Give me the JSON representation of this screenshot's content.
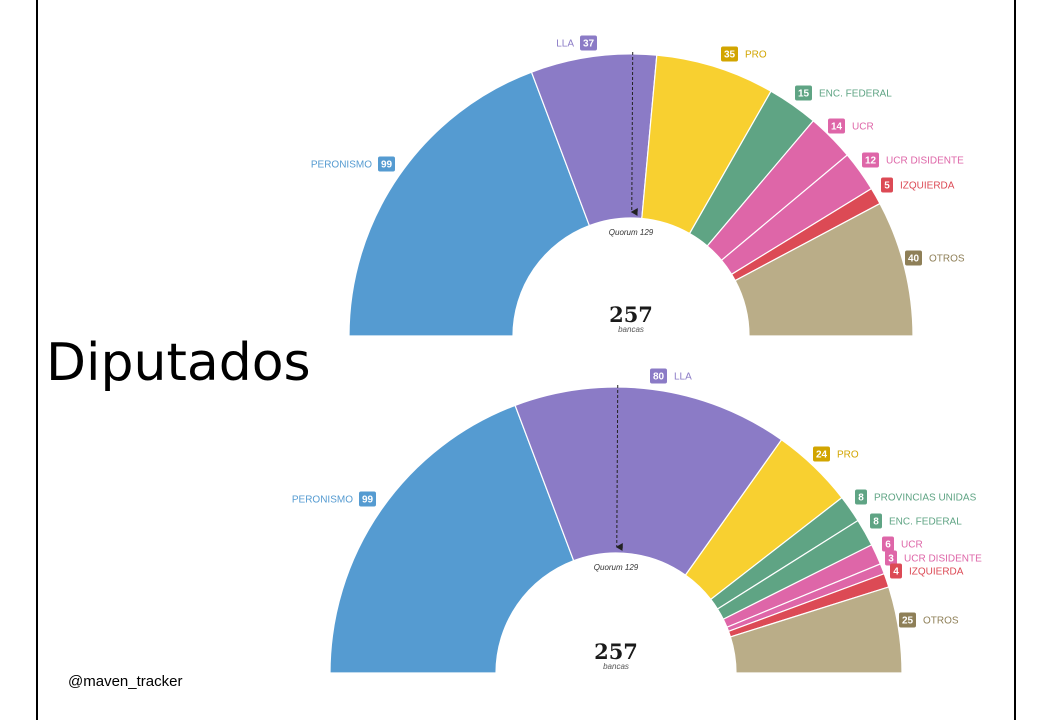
{
  "title": "Diputados",
  "handle": "@maven_tracker",
  "colors": {
    "peronismo": "#559bd1",
    "lla": "#8b7bc6",
    "pro": "#f8d030",
    "federal_green": "#5fa484",
    "ucr": "#de66a8",
    "izquierda": "#dc4a55",
    "otros": "#baad88",
    "label_pro": "#d2a500",
    "label_otros": "#8e7f57"
  },
  "chart_data": [
    {
      "type": "pie",
      "variant": "parliament-half-donut",
      "total": "257",
      "total_label": "bancas",
      "quorum_label": "Quorum 129",
      "quorum": 129,
      "series": [
        {
          "name": "PERONISMO",
          "value": 99,
          "label": "99",
          "color": "#559bd1",
          "label_color": "#559bd1",
          "label_side": "left"
        },
        {
          "name": "LLA",
          "value": 37,
          "label": "37",
          "color": "#8b7bc6",
          "label_color": "#8b7bc6",
          "label_side": "left"
        },
        {
          "name": "PRO",
          "value": 35,
          "label": "35",
          "color": "#f8d030",
          "label_color": "#d2a500",
          "label_side": "right"
        },
        {
          "name": "ENC. FEDERAL",
          "value": 15,
          "label": "15",
          "color": "#5fa484",
          "label_color": "#5fa484",
          "label_side": "right"
        },
        {
          "name": "UCR",
          "value": 14,
          "label": "14",
          "color": "#de66a8",
          "label_color": "#de66a8",
          "label_side": "right"
        },
        {
          "name": "UCR DISIDENTE",
          "value": 12,
          "label": "12",
          "color": "#de66a8",
          "label_color": "#de66a8",
          "label_side": "right"
        },
        {
          "name": "IZQUIERDA",
          "value": 5,
          "label": "5",
          "color": "#dc4a55",
          "label_color": "#dc4a55",
          "label_side": "right"
        },
        {
          "name": "OTROS",
          "value": 40,
          "label": "40",
          "color": "#baad88",
          "label_color": "#8e7f57",
          "label_side": "right"
        }
      ]
    },
    {
      "type": "pie",
      "variant": "parliament-half-donut",
      "total": "257",
      "total_label": "bancas",
      "quorum_label": "Quorum 129",
      "quorum": 129,
      "series": [
        {
          "name": "PERONISMO",
          "value": 99,
          "label": "99",
          "color": "#559bd1",
          "label_color": "#559bd1",
          "label_side": "left"
        },
        {
          "name": "LLA",
          "value": 80,
          "label": "80",
          "color": "#8b7bc6",
          "label_color": "#8b7bc6",
          "label_side": "right"
        },
        {
          "name": "PRO",
          "value": 24,
          "label": "24",
          "color": "#f8d030",
          "label_color": "#d2a500",
          "label_side": "right"
        },
        {
          "name": "PROVINCIAS UNIDAS",
          "value": 8,
          "label": "8",
          "color": "#5fa484",
          "label_color": "#5fa484",
          "label_side": "right"
        },
        {
          "name": "ENC. FEDERAL",
          "value": 8,
          "label": "8",
          "color": "#5fa484",
          "label_color": "#5fa484",
          "label_side": "right"
        },
        {
          "name": "UCR",
          "value": 6,
          "label": "6",
          "color": "#de66a8",
          "label_color": "#de66a8",
          "label_side": "right"
        },
        {
          "name": "UCR DISIDENTE",
          "value": 3,
          "label": "3",
          "color": "#de66a8",
          "label_color": "#de66a8",
          "label_side": "right"
        },
        {
          "name": "IZQUIERDA",
          "value": 4,
          "label": "4",
          "color": "#dc4a55",
          "label_color": "#dc4a55",
          "label_side": "right"
        },
        {
          "name": "OTROS",
          "value": 25,
          "label": "25",
          "color": "#baad88",
          "label_color": "#8e7f57",
          "label_side": "right"
        }
      ]
    }
  ]
}
